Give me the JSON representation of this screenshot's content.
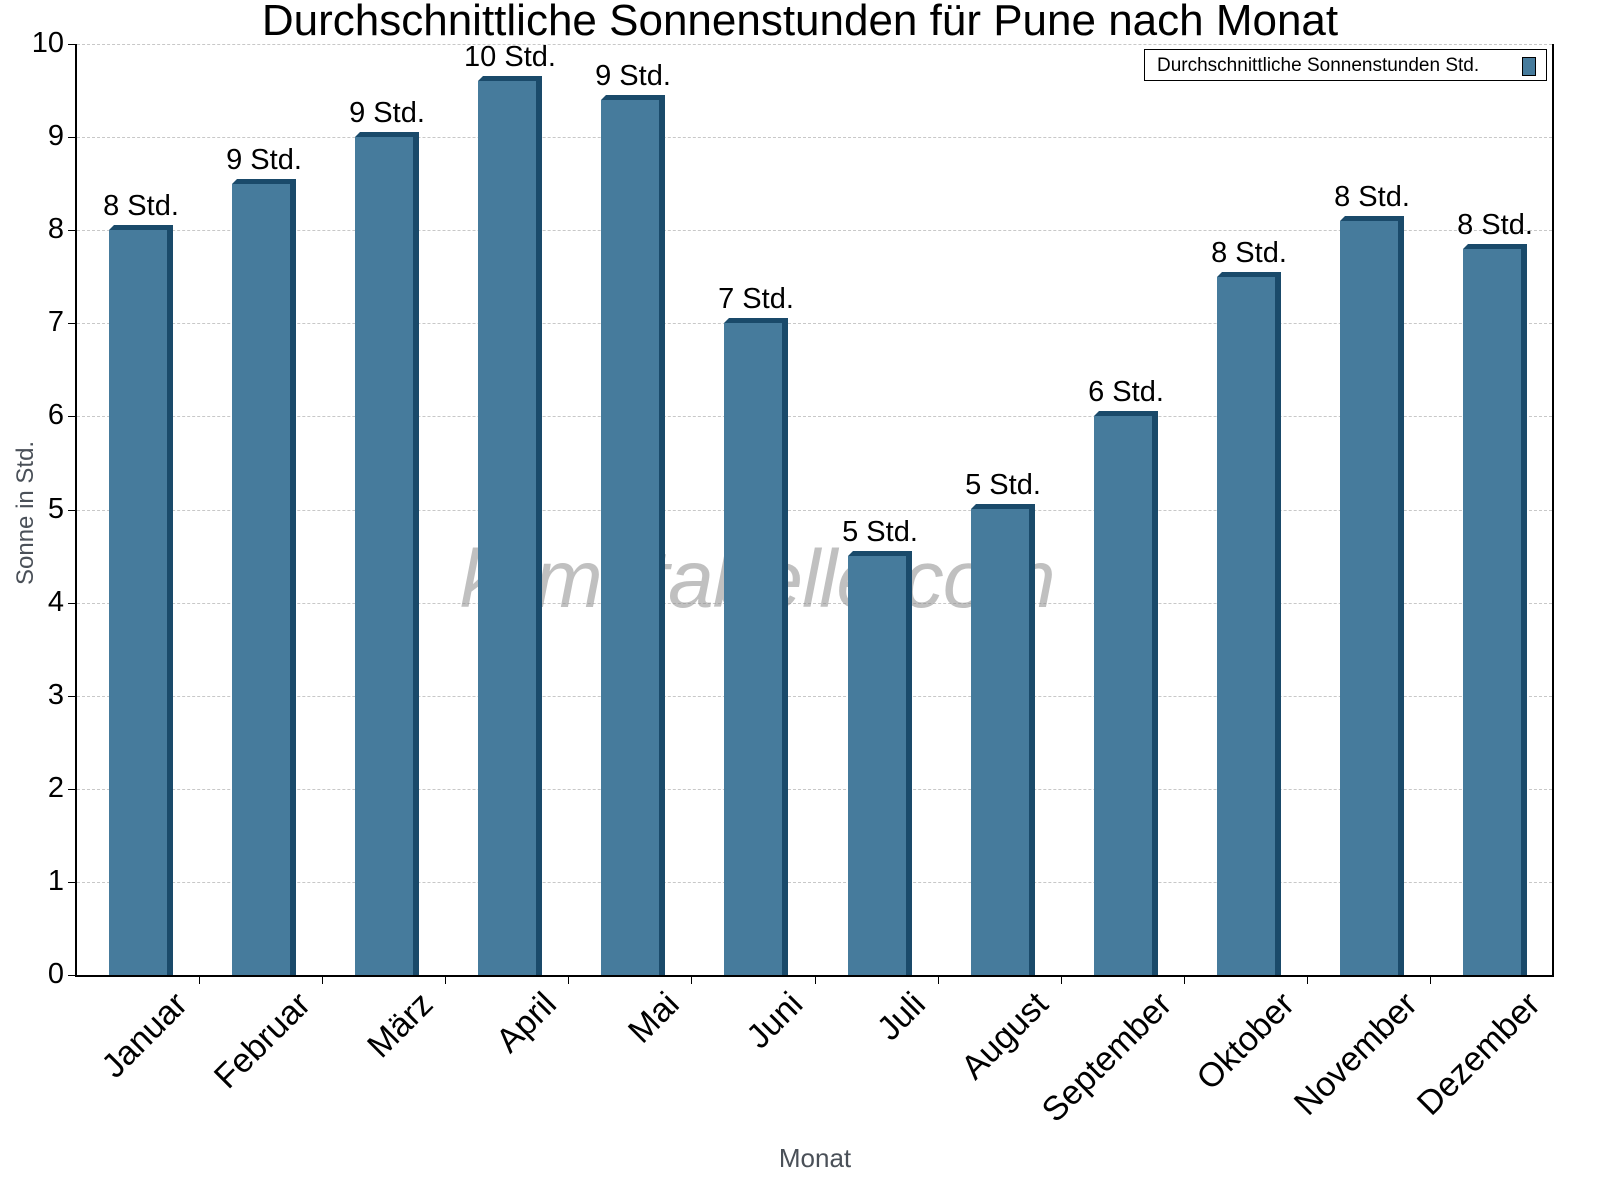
{
  "chart_data": {
    "type": "bar",
    "title": "Durchschnittliche Sonnenstunden für Pune nach Monat",
    "xlabel": "Monat",
    "ylabel": "Sonne in Std.",
    "ylim": [
      0,
      10
    ],
    "yticks": [
      0,
      1,
      2,
      3,
      4,
      5,
      6,
      7,
      8,
      9,
      10
    ],
    "grid": true,
    "legend_position": "top-right",
    "categories": [
      "Januar",
      "Februar",
      "März",
      "April",
      "Mai",
      "Juni",
      "Juli",
      "August",
      "September",
      "Oktober",
      "November",
      "Dezember"
    ],
    "series": [
      {
        "name": "Durchschnittliche Sonnenstunden Std.",
        "color": "#467b9c",
        "values": [
          8.0,
          8.5,
          9.0,
          9.6,
          9.4,
          7.0,
          4.5,
          5.0,
          6.0,
          7.5,
          8.1,
          7.8
        ],
        "data_labels": [
          "8 Std.",
          "9 Std.",
          "9 Std.",
          "10 Std.",
          "9 Std.",
          "7 Std.",
          "5 Std.",
          "5 Std.",
          "6 Std.",
          "8 Std.",
          "8 Std.",
          "8 Std."
        ]
      }
    ]
  },
  "watermark": "klimatabelle.com"
}
